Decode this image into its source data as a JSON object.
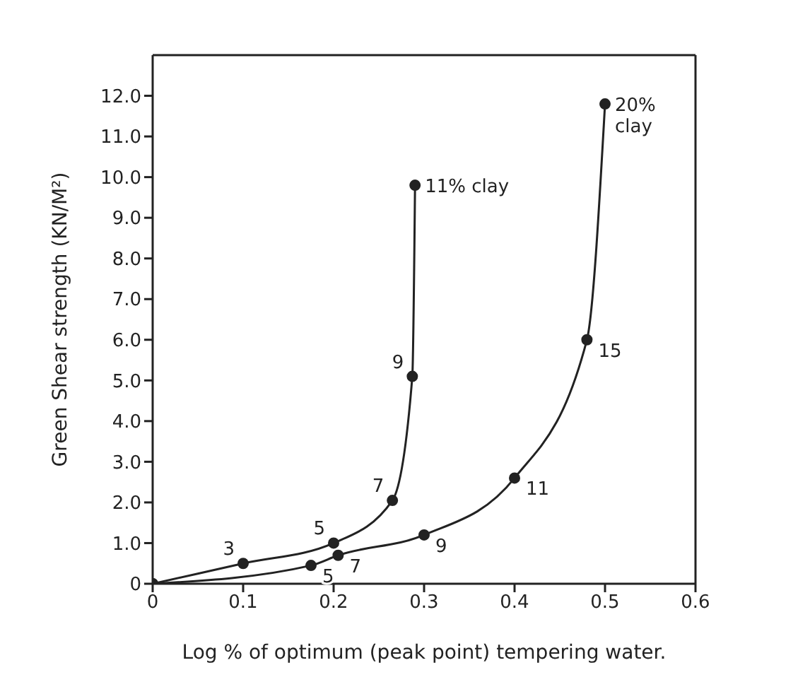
{
  "chart_data": {
    "type": "line",
    "xlabel": "Log % of optimum (peak point) tempering water.",
    "ylabel": "Green Shear strength (KN/M²)",
    "series": [
      {
        "name": "11% clay",
        "color": "#222222",
        "x": [
          0,
          0.1,
          0.2,
          0.265,
          0.287,
          0.29
        ],
        "values": [
          0,
          0.5,
          1.0,
          2.05,
          5.1,
          9.8
        ]
      },
      {
        "name": "20% clay",
        "color": "#222222",
        "x": [
          0,
          0.175,
          0.205,
          0.3,
          0.4,
          0.48,
          0.5
        ],
        "values": [
          0,
          0.45,
          0.7,
          1.2,
          2.6,
          6.0,
          11.8
        ]
      }
    ],
    "annotations": [
      {
        "text": "3",
        "x": 0.1,
        "y": 0.5
      },
      {
        "text": "5",
        "x": 0.2,
        "y": 1.0
      },
      {
        "text": "7",
        "x": 0.265,
        "y": 2.05
      },
      {
        "text": "9",
        "x": 0.287,
        "y": 5.1
      },
      {
        "text": "5",
        "x": 0.175,
        "y": 0.45
      },
      {
        "text": "7",
        "x": 0.205,
        "y": 0.7
      },
      {
        "text": "9",
        "x": 0.3,
        "y": 1.2
      },
      {
        "text": "11",
        "x": 0.4,
        "y": 2.6
      },
      {
        "text": "15",
        "x": 0.48,
        "y": 6.0
      }
    ],
    "xlim": [
      0,
      0.6
    ],
    "xticks": [
      0,
      0.1,
      0.2,
      0.3,
      0.4,
      0.5,
      0.6
    ],
    "ylim": [
      0,
      13
    ],
    "yticks": [
      0,
      {
        "value": 1,
        "label": "1.0"
      },
      {
        "value": 2,
        "label": "2.0"
      },
      {
        "value": 3,
        "label": "3.0"
      },
      {
        "value": 4,
        "label": "4.0"
      },
      {
        "value": 5,
        "label": "5.0"
      },
      {
        "value": 6,
        "label": "6.0"
      },
      {
        "value": 7,
        "label": "7.0"
      },
      {
        "value": 8,
        "label": "8.0"
      },
      {
        "value": 9,
        "label": "9.0"
      },
      {
        "value": 10,
        "label": "10.0"
      },
      {
        "value": 11,
        "label": "11.0"
      },
      {
        "value": 12,
        "label": "12.0"
      }
    ],
    "legend": false,
    "marker": "circle",
    "line_style": "solid"
  }
}
